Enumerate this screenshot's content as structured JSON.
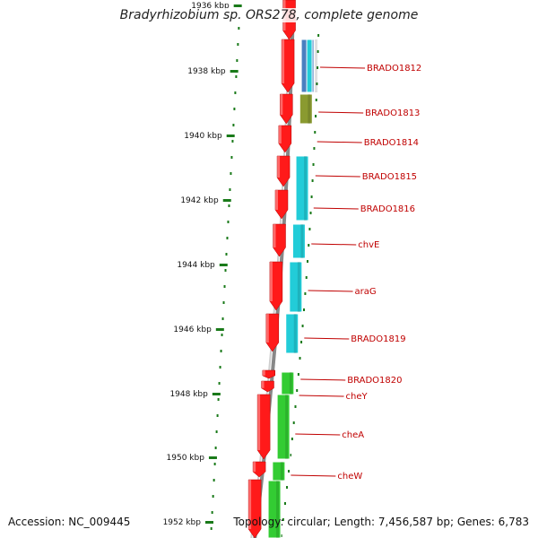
{
  "title": "Bradyrhizobium sp. ORS278, complete genome",
  "footer": {
    "accession": "Accession: NC_009445",
    "summary": "Topology: circular; Length: 7,456,587 bp; Genes: 6,783"
  },
  "colors": {
    "forward_gene": "#ff1a1a",
    "cog_cyan": "#22ccd8",
    "cog_green": "#33cc33",
    "cog_blue": "#4a7fc0",
    "cog_olive": "#8a9a30",
    "tick": "#1a7a1a",
    "label": "#c00000",
    "backbone": "#888888"
  },
  "ticks": [
    {
      "label": "1936 kbp"
    },
    {
      "label": "1938 kbp"
    },
    {
      "label": "1940 kbp"
    },
    {
      "label": "1942 kbp"
    },
    {
      "label": "1944 kbp"
    },
    {
      "label": "1946 kbp"
    },
    {
      "label": "1948 kbp"
    },
    {
      "label": "1950 kbp"
    },
    {
      "label": "1952 kbp"
    }
  ],
  "genes": [
    {
      "label": "BRADO1812"
    },
    {
      "label": "BRADO1813"
    },
    {
      "label": "BRADO1814"
    },
    {
      "label": "BRADO1815"
    },
    {
      "label": "BRADO1816"
    },
    {
      "label": "chvE"
    },
    {
      "label": "araG"
    },
    {
      "label": "BRADO1819"
    },
    {
      "label": "BRADO1820"
    },
    {
      "label": "cheY"
    },
    {
      "label": "cheA"
    },
    {
      "label": "cheW"
    }
  ]
}
